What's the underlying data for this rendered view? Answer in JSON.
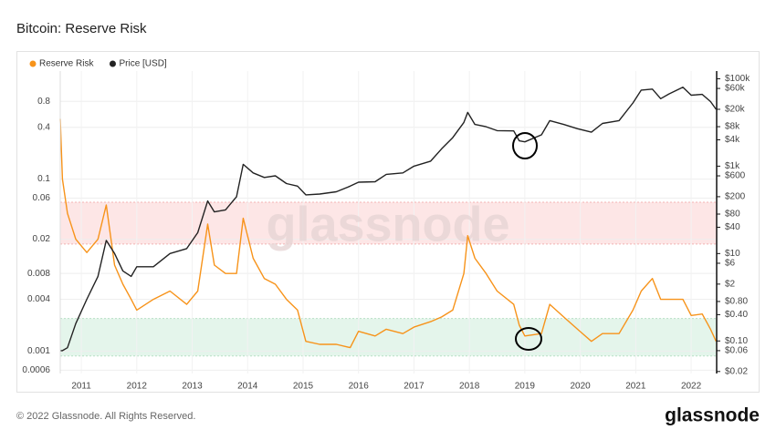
{
  "chart_data": {
    "type": "line",
    "title": "Bitcoin: Reserve Risk",
    "watermark": "glassnode",
    "footer": "© 2022 Glassnode. All Rights Reserved.",
    "logo": "glassnode",
    "log_scale": true,
    "grid": true,
    "legend": "top-left",
    "x": [
      2010.62,
      2010.66,
      2010.75,
      2010.9,
      2011.1,
      2011.3,
      2011.45,
      2011.6,
      2011.75,
      2011.9,
      2012.0,
      2012.3,
      2012.6,
      2012.9,
      2013.1,
      2013.28,
      2013.4,
      2013.6,
      2013.8,
      2013.92,
      2014.1,
      2014.3,
      2014.5,
      2014.7,
      2014.9,
      2015.05,
      2015.3,
      2015.6,
      2015.85,
      2016.0,
      2016.3,
      2016.5,
      2016.8,
      2017.0,
      2017.3,
      2017.5,
      2017.7,
      2017.9,
      2017.97,
      2018.1,
      2018.3,
      2018.5,
      2018.8,
      2018.9,
      2019.0,
      2019.3,
      2019.45,
      2019.7,
      2019.95,
      2020.2,
      2020.4,
      2020.7,
      2020.95,
      2021.1,
      2021.3,
      2021.45,
      2021.6,
      2021.85,
      2022.0,
      2022.2,
      2022.35,
      2022.45
    ],
    "xlim": [
      2010.62,
      2022.46
    ],
    "xticks": [
      2011,
      2012,
      2013,
      2014,
      2015,
      2016,
      2017,
      2018,
      2019,
      2020,
      2021,
      2022
    ],
    "ylim": [
      0.00055,
      1.8
    ],
    "yticks": [
      0.0006,
      0.001,
      0.004,
      0.008,
      0.02,
      0.06,
      0.1,
      0.4,
      0.8
    ],
    "y2lim": [
      0.018,
      150000
    ],
    "y2ticks": [
      {
        "value": 0.02,
        "label": "$0.02"
      },
      {
        "value": 0.06,
        "label": "$0.06"
      },
      {
        "value": 0.1,
        "label": "$0.10"
      },
      {
        "value": 0.4,
        "label": "$0.40"
      },
      {
        "value": 0.8,
        "label": "$0.80"
      },
      {
        "value": 2,
        "label": "$2"
      },
      {
        "value": 6,
        "label": "$6"
      },
      {
        "value": 10,
        "label": "$10"
      },
      {
        "value": 40,
        "label": "$40"
      },
      {
        "value": 80,
        "label": "$80"
      },
      {
        "value": 200,
        "label": "$200"
      },
      {
        "value": 600,
        "label": "$600"
      },
      {
        "value": 1000,
        "label": "$1k"
      },
      {
        "value": 4000,
        "label": "$4k"
      },
      {
        "value": 8000,
        "label": "$8k"
      },
      {
        "value": 20000,
        "label": "$20k"
      },
      {
        "value": 60000,
        "label": "$60k"
      },
      {
        "value": 100000,
        "label": "$100k"
      }
    ],
    "bands": [
      {
        "range": [
          0.0176,
          0.0538
        ],
        "color": "#fde6e6"
      },
      {
        "range": [
          0.00088,
          0.0024
        ],
        "color": "#e4f5eb"
      }
    ],
    "series": [
      {
        "name": "Reserve Risk",
        "color": "#f7931a",
        "values": [
          0.5,
          0.1,
          0.04,
          0.02,
          0.014,
          0.02,
          0.05,
          0.01,
          0.006,
          0.004,
          0.003,
          0.004,
          0.005,
          0.0035,
          0.005,
          0.03,
          0.01,
          0.008,
          0.008,
          0.035,
          0.012,
          0.007,
          0.006,
          0.004,
          0.003,
          0.0013,
          0.0012,
          0.0012,
          0.0011,
          0.0017,
          0.0015,
          0.0018,
          0.0016,
          0.0019,
          0.0022,
          0.0025,
          0.003,
          0.008,
          0.022,
          0.012,
          0.008,
          0.005,
          0.0035,
          0.002,
          0.0015,
          0.0016,
          0.0035,
          0.0025,
          0.0018,
          0.0013,
          0.0016,
          0.0016,
          0.003,
          0.005,
          0.007,
          0.004,
          0.004,
          0.004,
          0.0026,
          0.0027,
          0.0018,
          0.0013
        ]
      },
      {
        "name": "Price [USD]",
        "color": "#222222",
        "axis": "y2",
        "values": [
          0.06,
          0.06,
          0.07,
          0.25,
          0.9,
          3,
          20,
          10,
          4,
          3,
          5,
          5,
          10,
          13,
          30,
          160,
          90,
          100,
          200,
          1100,
          700,
          550,
          600,
          400,
          350,
          220,
          230,
          260,
          350,
          430,
          440,
          650,
          700,
          1000,
          1300,
          2500,
          4500,
          10000,
          17000,
          9000,
          8000,
          6500,
          6400,
          3800,
          3600,
          5200,
          11000,
          9000,
          7200,
          6000,
          9500,
          11000,
          28000,
          55000,
          58000,
          35000,
          45000,
          64000,
          42000,
          44000,
          30000,
          20000
        ]
      }
    ]
  }
}
